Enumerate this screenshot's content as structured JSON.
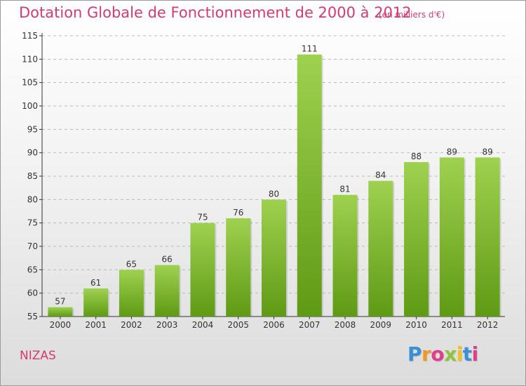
{
  "title": "Dotation Globale de Fonctionnement de 2000 à 2012",
  "subtitle": "(en milliers d'€)",
  "commune": "NIZAS",
  "brand": {
    "text": "Proxiti",
    "colors": [
      "#3a8fd8",
      "#f29a1f",
      "#e23d8b",
      "#8cc63f",
      "#f2c31f",
      "#3a8fd8",
      "#e23d8b"
    ]
  },
  "colors": {
    "bar_light": "#9ed14f",
    "bar_dark": "#5f9a15",
    "text_pink": "#d63a6e",
    "axis": "#333333",
    "grid": "#bbbbbb"
  },
  "chart_data": {
    "type": "bar",
    "title": "Dotation Globale de Fonctionnement de 2000 à 2012",
    "subtitle": "(en milliers d'€)",
    "categories": [
      "2000",
      "2001",
      "2002",
      "2003",
      "2004",
      "2005",
      "2006",
      "2007",
      "2008",
      "2009",
      "2010",
      "2011",
      "2012"
    ],
    "values": [
      57,
      61,
      65,
      66,
      75,
      76,
      80,
      111,
      81,
      84,
      88,
      89,
      89
    ],
    "ylim": [
      55,
      115
    ],
    "yticks": [
      55,
      60,
      65,
      70,
      75,
      80,
      85,
      90,
      95,
      100,
      105,
      110,
      115
    ],
    "grid": true,
    "data_labels": true
  }
}
